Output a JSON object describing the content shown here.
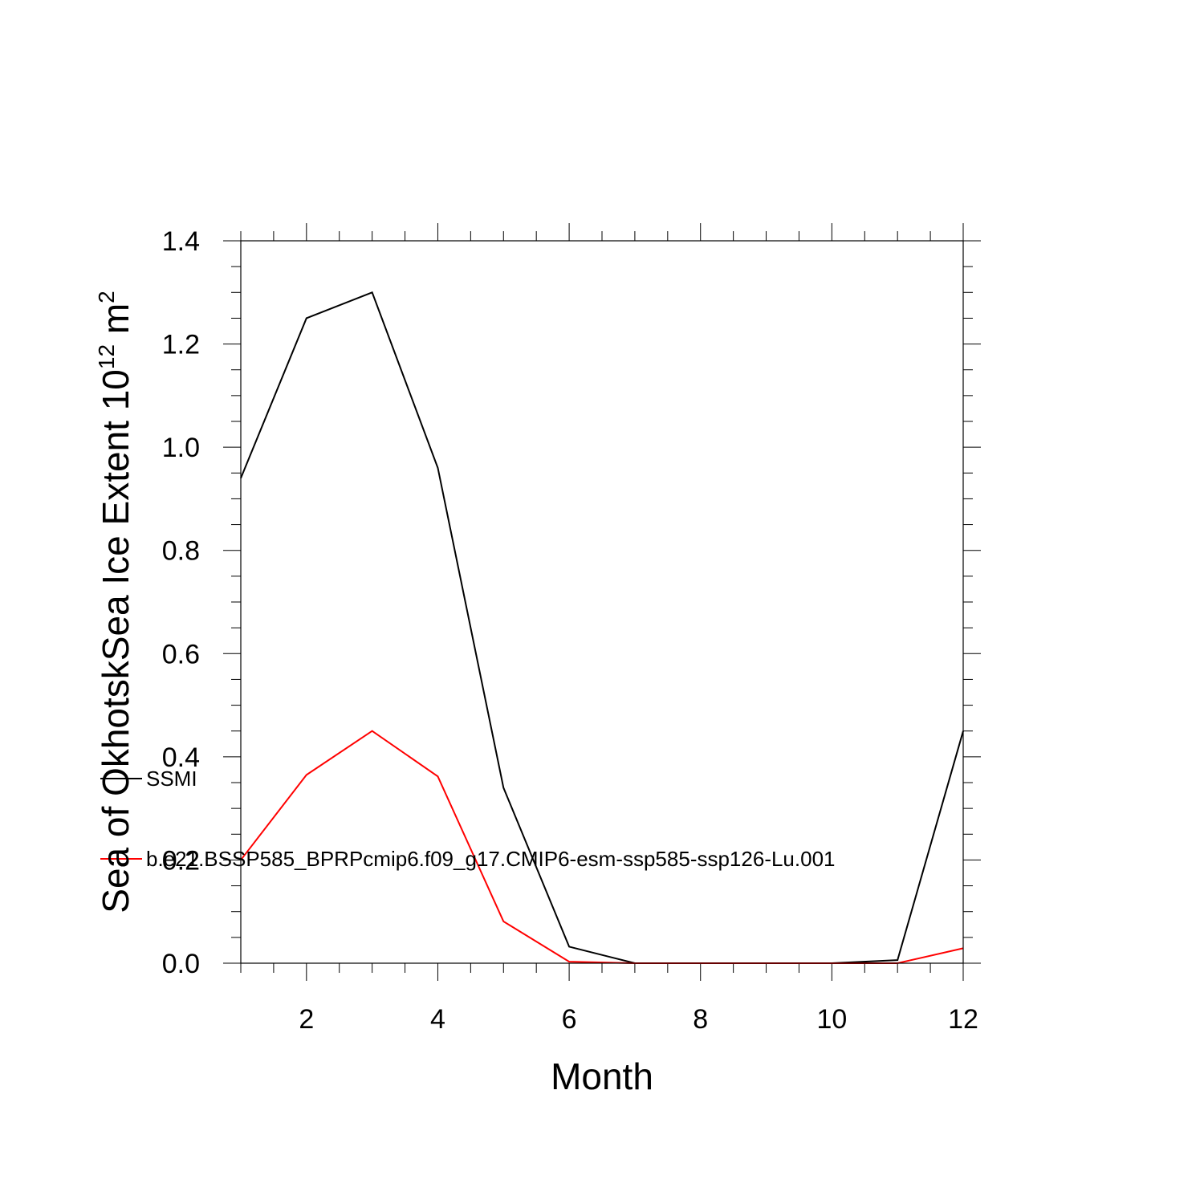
{
  "chart_data": {
    "type": "line",
    "xlabel": "Month",
    "ylabel": {
      "text": "Sea of OkhotskSea Ice Extent 10",
      "superscript_1": "12",
      "unit": " m",
      "superscript_2": "2"
    },
    "xlim": [
      1,
      12
    ],
    "ylim": [
      0,
      1.4
    ],
    "x_major_ticks": [
      2,
      4,
      6,
      8,
      10,
      12
    ],
    "x_tick_labels": [
      "2",
      "4",
      "6",
      "8",
      "10",
      "12"
    ],
    "y_major_ticks": [
      0,
      0.2,
      0.4,
      0.6,
      0.8,
      1.0,
      1.2,
      1.4
    ],
    "y_tick_labels": [
      "0.0",
      "0.2",
      "0.4",
      "0.6",
      "0.8",
      "1.0",
      "1.2",
      "1.4"
    ],
    "grid": false,
    "legend_position": "left, overlapping plot",
    "x": [
      1,
      2,
      3,
      4,
      5,
      6,
      7,
      8,
      9,
      10,
      11,
      12
    ],
    "series": [
      {
        "name": "SSMI",
        "color": "#000000",
        "values": [
          0.94,
          1.25,
          1.3,
          0.96,
          0.34,
          0.032,
          0.0,
          0.0,
          0.0,
          0.0,
          0.006,
          0.45
        ]
      },
      {
        "name": "b.e21.BSSP585_BPRPcmip6.f09_g17.CMIP6-esm-ssp585-ssp126-Lu.001",
        "color": "#ff0000",
        "values": [
          0.2,
          0.365,
          0.45,
          0.362,
          0.081,
          0.003,
          0.0,
          0.0,
          0.0,
          0.0,
          0.0,
          0.029
        ]
      }
    ]
  }
}
